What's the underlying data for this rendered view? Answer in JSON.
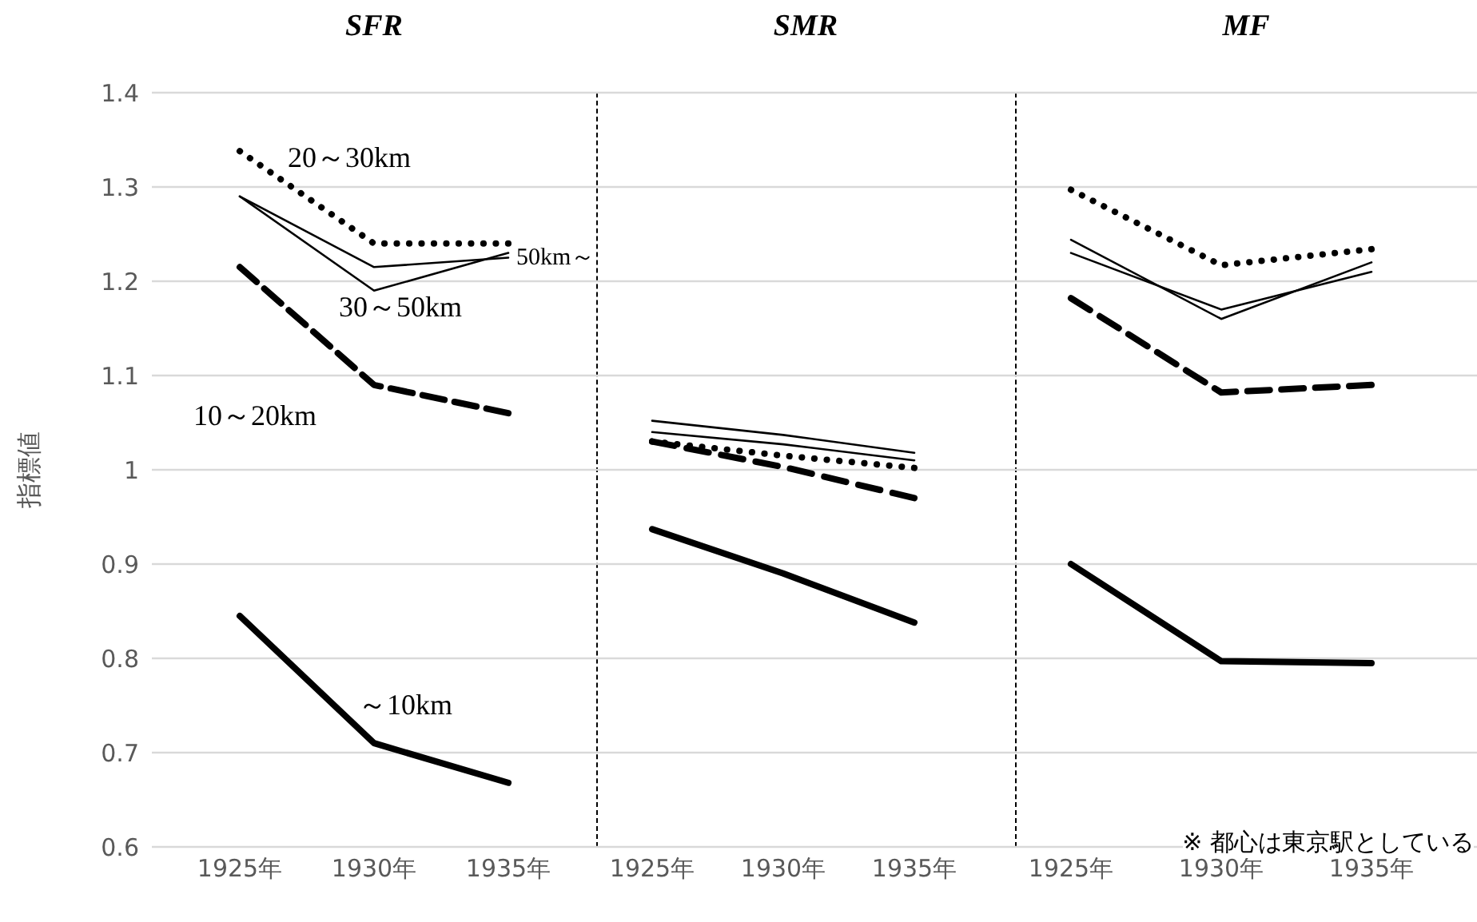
{
  "chart_data": [
    {
      "type": "line",
      "title": "SFR",
      "ylabel": "指標値",
      "categories": [
        "1925年",
        "1930年",
        "1935年"
      ],
      "ylim": [
        0.6,
        1.4
      ],
      "yticks": [
        0.6,
        0.7,
        0.8,
        0.9,
        1,
        1.1,
        1.2,
        1.3,
        1.4
      ],
      "grid": "y",
      "legend": false,
      "marker": "none",
      "series": [
        {
          "name": "～10km",
          "color": "#000000",
          "line_style": "solid",
          "values": [
            0.845,
            0.71,
            0.668
          ]
        },
        {
          "name": "10～20km",
          "color": "#000000",
          "line_style": "dashed",
          "values": [
            1.215,
            1.09,
            1.06
          ]
        },
        {
          "name": "20～30km",
          "color": "#000000",
          "line_style": "dotted",
          "values": [
            1.338,
            1.24,
            1.24
          ]
        },
        {
          "name": "30～50km",
          "color": "#000000",
          "line_style": "solid",
          "values": [
            1.29,
            1.19,
            1.23
          ]
        },
        {
          "name": "50km～",
          "color": "#000000",
          "line_style": "solid",
          "values": [
            1.29,
            1.215,
            1.225
          ]
        }
      ]
    },
    {
      "type": "line",
      "title": "SMR",
      "categories": [
        "1925年",
        "1930年",
        "1935年"
      ],
      "ylim": [
        0.6,
        1.4
      ],
      "yticks": [
        0.6,
        0.7,
        0.8,
        0.9,
        1,
        1.1,
        1.2,
        1.3,
        1.4
      ],
      "grid": "y",
      "legend": false,
      "marker": "none",
      "tick_labels": "x",
      "series": [
        {
          "color": "#000000",
          "line_style": "solid",
          "values": [
            0.937,
            0.89,
            0.838
          ]
        },
        {
          "color": "#000000",
          "line_style": "dashed",
          "values": [
            1.03,
            1.003,
            0.97
          ]
        },
        {
          "color": "#000000",
          "line_style": "dotted",
          "values": [
            1.03,
            1.015,
            1.002
          ]
        },
        {
          "color": "#000000",
          "line_style": "solid",
          "values": [
            1.04,
            1.027,
            1.01
          ]
        },
        {
          "color": "#000000",
          "line_style": "solid",
          "values": [
            1.052,
            1.037,
            1.018
          ]
        }
      ]
    },
    {
      "type": "line",
      "title": "MF",
      "categories": [
        "1925年",
        "1930年",
        "1935年"
      ],
      "ylim": [
        0.6,
        1.4
      ],
      "yticks": [
        0.6,
        0.7,
        0.8,
        0.9,
        1,
        1.1,
        1.2,
        1.3,
        1.4
      ],
      "grid": "y",
      "legend": false,
      "marker": "none",
      "tick_labels": "x",
      "annotations": [
        "※ 都心は東京駅としている"
      ],
      "series": [
        {
          "color": "#000000",
          "line_style": "solid",
          "values": [
            0.9,
            0.797,
            0.795
          ]
        },
        {
          "color": "#000000",
          "line_style": "dashed",
          "values": [
            1.182,
            1.082,
            1.09
          ]
        },
        {
          "color": "#000000",
          "line_style": "dotted",
          "values": [
            1.297,
            1.217,
            1.234
          ]
        },
        {
          "color": "#000000",
          "line_style": "solid",
          "values": [
            1.244,
            1.16,
            1.22
          ]
        },
        {
          "color": "#000000",
          "line_style": "solid",
          "values": [
            1.23,
            1.17,
            1.21
          ]
        }
      ]
    }
  ]
}
